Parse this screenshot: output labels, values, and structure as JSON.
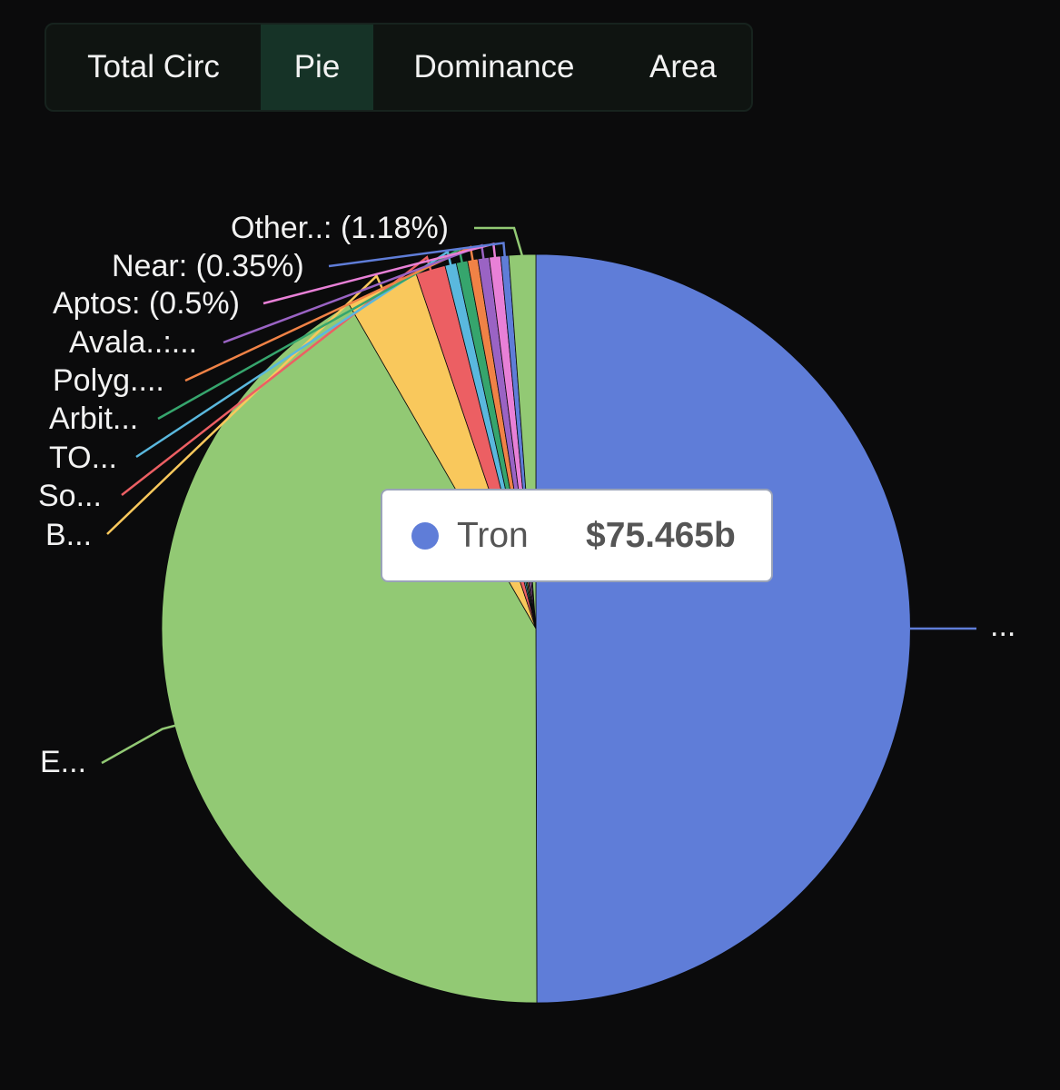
{
  "tabs": [
    {
      "label": "Total Circ",
      "active": false
    },
    {
      "label": "Pie",
      "active": true
    },
    {
      "label": "Dominance",
      "active": false
    },
    {
      "label": "Area",
      "active": false
    }
  ],
  "tooltip": {
    "name": "Tron",
    "value": "$75.465b",
    "color": "#5f7dd8"
  },
  "chart_data": {
    "type": "pie",
    "start_angle_deg": 0,
    "direction": "clockwise",
    "slices": [
      {
        "name": "Tron",
        "label": "...",
        "percent": 50.9,
        "color": "#5f7dd8"
      },
      {
        "name": "Ethereum",
        "label": "E...",
        "percent": 42.5,
        "color": "#92c974"
      },
      {
        "name": "BSC",
        "label": "B...",
        "percent": 3.2,
        "color": "#f9c85c"
      },
      {
        "name": "Solana",
        "label": "So...",
        "percent": 1.3,
        "color": "#ec5f63"
      },
      {
        "name": "TON",
        "label": "TO...",
        "percent": 0.5,
        "color": "#5ab8de"
      },
      {
        "name": "Arbitrum",
        "label": "Arbit...",
        "percent": 0.5,
        "color": "#36a56d"
      },
      {
        "name": "Polygon",
        "label": "Polyg....",
        "percent": 0.45,
        "color": "#f08246"
      },
      {
        "name": "Avalanche",
        "label": "Avala..:...",
        "percent": 0.5,
        "color": "#9a63c4"
      },
      {
        "name": "Aptos",
        "label": "Aptos: (0.5%)",
        "percent": 0.5,
        "color": "#e880d7"
      },
      {
        "name": "Near",
        "label": "Near: (0.35%)",
        "percent": 0.35,
        "color": "#5f7dd8"
      },
      {
        "name": "Others",
        "label": "Other..: (1.18%)",
        "percent": 1.18,
        "color": "#92c974"
      }
    ]
  }
}
